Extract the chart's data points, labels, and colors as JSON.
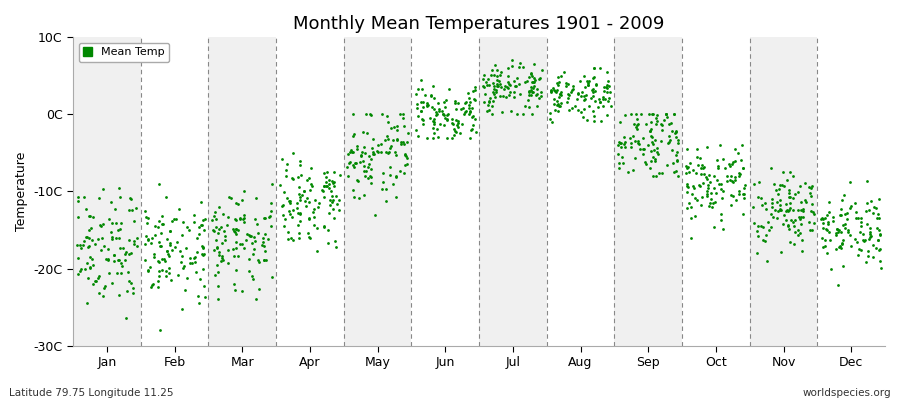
{
  "title": "Monthly Mean Temperatures 1901 - 2009",
  "ylabel": "Temperature",
  "subtitle_left": "Latitude 79.75 Longitude 11.25",
  "subtitle_right": "worldspecies.org",
  "legend_label": "Mean Temp",
  "marker_color": "#008800",
  "marker_size": 4,
  "bg_color": "#ffffff",
  "band_color_even": "#f0f0f0",
  "band_color_odd": "#ffffff",
  "ylim": [
    -30,
    10
  ],
  "yticks": [
    -30,
    -20,
    -10,
    0,
    10
  ],
  "ytick_labels": [
    "-30C",
    "-20C",
    "-10C",
    "0C",
    "10C"
  ],
  "months": [
    "Jan",
    "Feb",
    "Mar",
    "Apr",
    "May",
    "Jun",
    "Jul",
    "Aug",
    "Sep",
    "Oct",
    "Nov",
    "Dec"
  ],
  "monthly_means": [
    -17.5,
    -17.5,
    -16.0,
    -11.0,
    -5.0,
    -0.2,
    3.2,
    2.8,
    -3.5,
    -9.0,
    -12.5,
    -14.5
  ],
  "monthly_stds": [
    3.5,
    3.5,
    3.0,
    3.0,
    3.5,
    1.8,
    1.8,
    1.8,
    2.5,
    2.5,
    2.5,
    2.5
  ],
  "monthly_mins": [
    -28,
    -28,
    -24,
    -19,
    -13,
    -3,
    0,
    -1,
    -8,
    -16,
    -19,
    -23
  ],
  "monthly_maxs": [
    -8,
    -9,
    -9,
    -5,
    0,
    5,
    7,
    6,
    0,
    -4,
    -7,
    -8
  ],
  "n_years": 109,
  "dashed_line_color": "#888888"
}
